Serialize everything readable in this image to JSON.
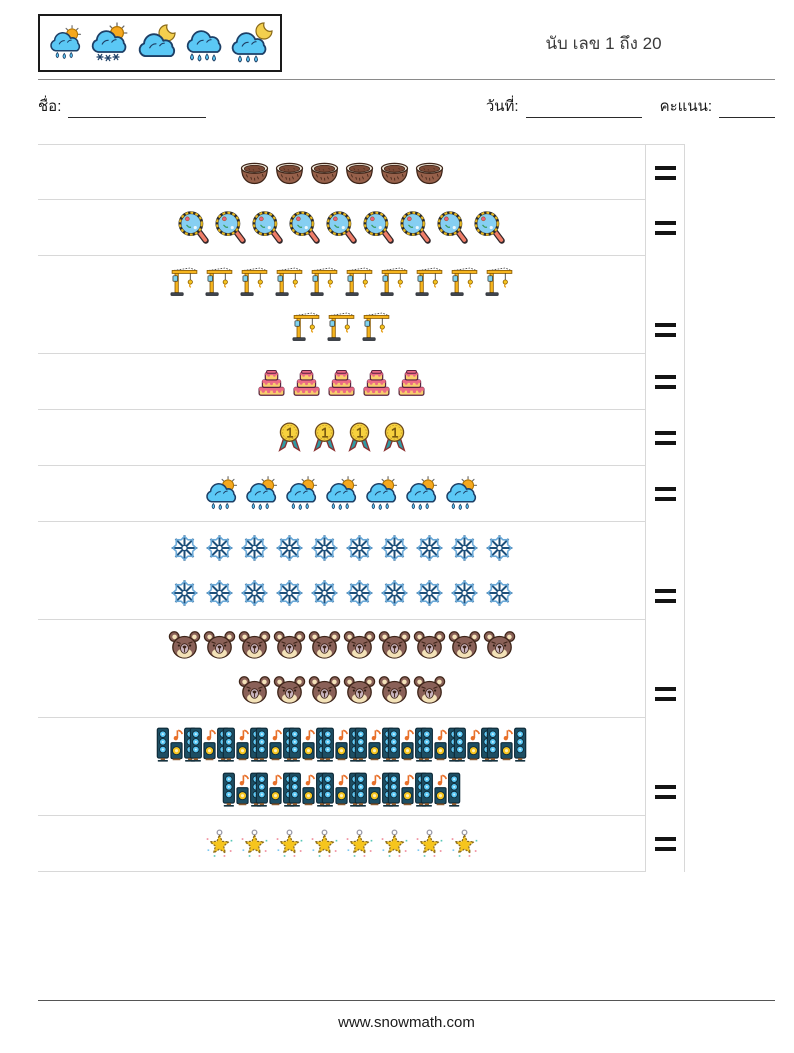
{
  "header": {
    "title": "นับ เลข 1 ถึง 20",
    "logo_icons": [
      "sun-rain-cloud",
      "sun-snow-cloud",
      "moon-cloud",
      "rain-cloud",
      "moon-rain-cloud"
    ]
  },
  "fields": {
    "name_label": "ชื่อ:",
    "date_label": "วันที่:",
    "score_label": "คะแนน:"
  },
  "table": {
    "equals_symbol": "=",
    "rows": [
      {
        "icon": "coconut",
        "count": 6,
        "lines": [
          6
        ]
      },
      {
        "icon": "magnifier",
        "count": 9,
        "lines": [
          9
        ]
      },
      {
        "icon": "crane",
        "count": 13,
        "lines": [
          10,
          3
        ]
      },
      {
        "icon": "cake",
        "count": 5,
        "lines": [
          5
        ]
      },
      {
        "icon": "medal",
        "count": 4,
        "lines": [
          4
        ]
      },
      {
        "icon": "sun-rain-cloud",
        "count": 7,
        "lines": [
          7
        ]
      },
      {
        "icon": "snowflake",
        "count": 20,
        "lines": [
          10,
          10
        ]
      },
      {
        "icon": "bear",
        "count": 16,
        "lines": [
          10,
          6
        ]
      },
      {
        "icon": "speaker",
        "count": 18,
        "lines": [
          11,
          7
        ]
      },
      {
        "icon": "star",
        "count": 8,
        "lines": [
          8
        ]
      }
    ]
  },
  "footer": {
    "site": "www.snowmath.com"
  },
  "colors": {
    "table_border": "#d8d8d8",
    "equals": "#141414",
    "cloud_blue": "#5bc8f5",
    "sun_orange": "#f6a81e",
    "crane_yellow": "#f6b51e",
    "cake_pink": "#ec6a85",
    "cake_yellow": "#f8cf6d",
    "medal_gold": "#f7d13e",
    "snowflake_navy": "#1d4f7a",
    "bear_brown": "#8a6158",
    "speaker_teal": "#1d4e63",
    "star_gold": "#f6c51e"
  }
}
